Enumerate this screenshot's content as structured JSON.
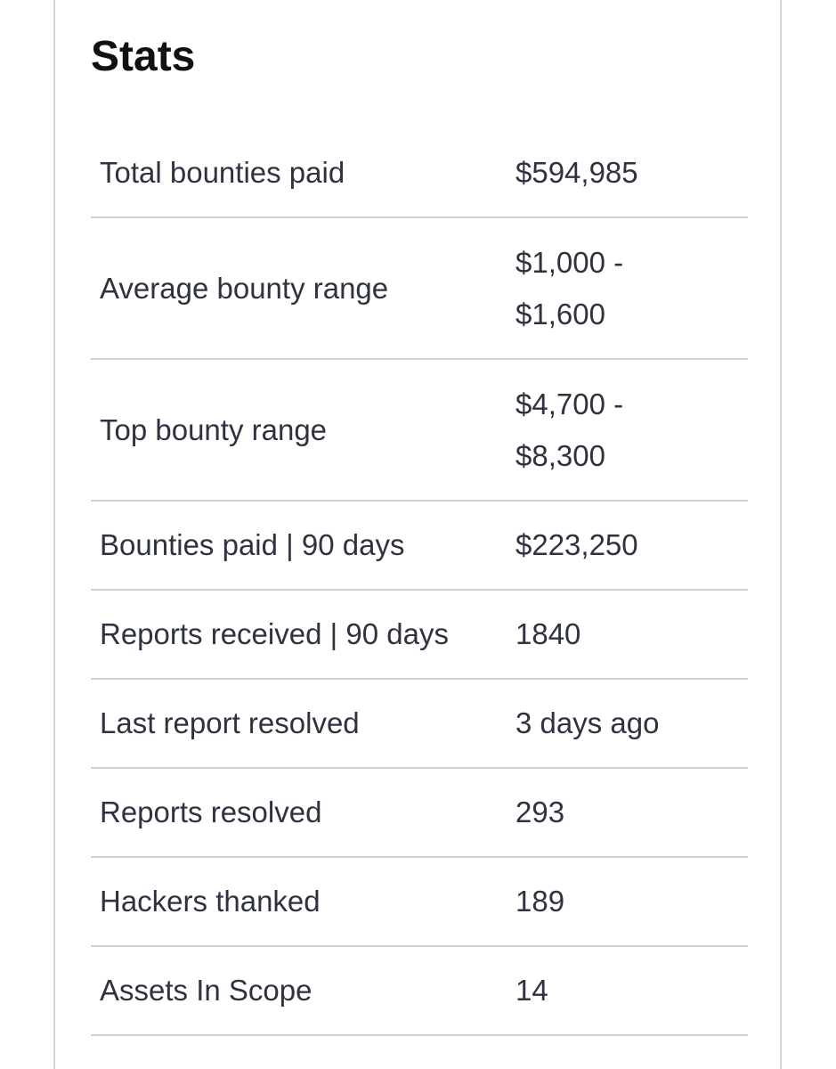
{
  "header": {
    "title": "Stats"
  },
  "table": {
    "rows": [
      [
        "Total bounties paid",
        "$594,985"
      ],
      [
        "Average bounty range",
        "$1,000 - $1,600"
      ],
      [
        "Top bounty range",
        "$4,700 - $8,300"
      ],
      [
        "Bounties paid | 90 days",
        "$223,250"
      ],
      [
        "Reports received | 90 days",
        "1840"
      ],
      [
        "Last report resolved",
        "3 days ago"
      ],
      [
        "Reports resolved",
        "293"
      ],
      [
        "Hackers thanked",
        "189"
      ],
      [
        "Assets In Scope",
        "14"
      ]
    ]
  }
}
